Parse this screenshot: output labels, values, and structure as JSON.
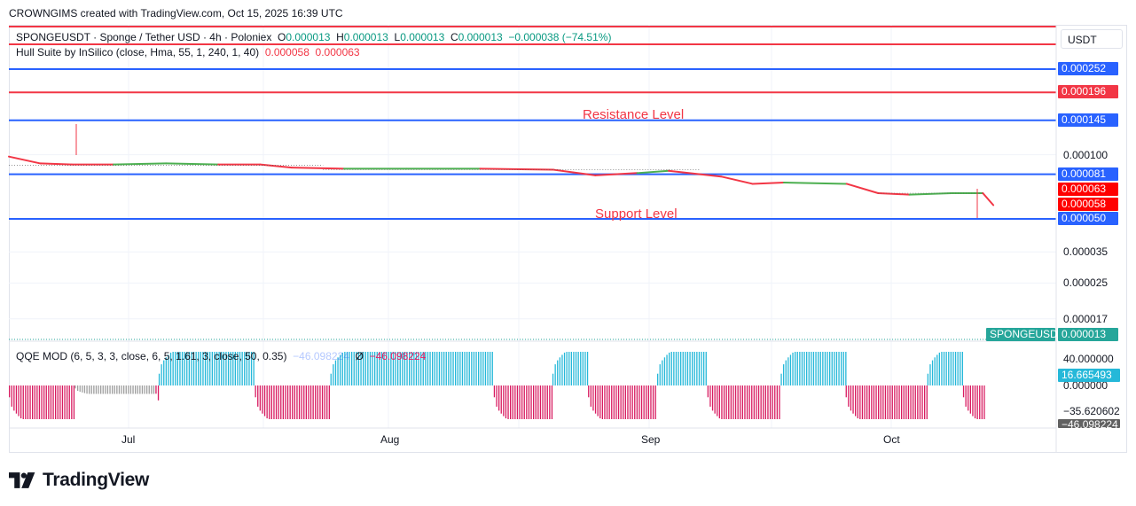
{
  "header": {
    "text": "CROWNGIMS created with TradingView.com, Oct 15, 2025 16:39 UTC"
  },
  "legend": {
    "symbol": "SPONGEUSDT · Sponge / Tether USD · 4h · Poloniex",
    "o_key": "O",
    "o_val": "0.000013",
    "h_key": "H",
    "h_val": "0.000013",
    "l_key": "L",
    "l_val": "0.000013",
    "c_key": "C",
    "c_val": "0.000013",
    "change": "−0.000038 (−74.51%)",
    "hull_label": "Hull Suite by InSilico (close, Hma, 55, 1, 240, 1, 40)",
    "hull_val1": "0.000058",
    "hull_val2": "0.000063",
    "qqe_label": "QQE MOD (6, 5, 3, 3, close, 6, 5, 1.61, 3, close, 50, 0.35)",
    "qqe_val1": "−46.098224",
    "qqe_icon": "Ø",
    "qqe_val2": "−46.098224"
  },
  "currency": "USDT",
  "annotations": {
    "resistance": "Resistance Level",
    "support": "Support Level"
  },
  "brand": "TradingView",
  "colors": {
    "blue_level": "#2962ff",
    "red_level": "#f23645",
    "hull_up": "#4caf50",
    "hull_down": "#f23645",
    "qqe_pos": "#25b8d9",
    "qqe_neg": "#d81b60",
    "qqe_neutral": "#9e9e9e",
    "teal": "#26a69a"
  },
  "chart_data": [
    {
      "type": "line",
      "title": "SPONGEUSDT · Sponge / Tether USD · 4h · Poloniex",
      "x_ticks": [
        "Jul",
        "Aug",
        "Sep",
        "Oct"
      ],
      "y_tick_labels": [
        "0.000100",
        "0.000035",
        "0.000025",
        "0.000017"
      ],
      "scale": "log",
      "horizontal_levels": [
        {
          "value": 0.000252,
          "label": "0.000252",
          "color": "#2962ff"
        },
        {
          "value": 0.000196,
          "label": "0.000196",
          "color": "#f23645"
        },
        {
          "value": 0.000145,
          "label": "0.000145",
          "color": "#2962ff"
        },
        {
          "value": 8.1e-05,
          "label": "0.000081",
          "color": "#2962ff"
        },
        {
          "value": 5e-05,
          "label": "0.000050",
          "color": "#2962ff"
        }
      ],
      "price_badges": [
        {
          "label": "0.000063",
          "color": "#ff0000"
        },
        {
          "label": "0.000058",
          "color": "#ff0000"
        },
        {
          "symbol": "SPONGEUSDT",
          "label": "0.000013",
          "color": "#26a69a"
        }
      ],
      "series": [
        {
          "name": "Hull Suite by InSilico",
          "t": [
            0,
            0.03,
            0.06,
            0.1,
            0.15,
            0.2,
            0.24,
            0.27,
            0.32,
            0.38,
            0.45,
            0.52,
            0.56,
            0.6,
            0.63,
            0.68,
            0.71,
            0.74,
            0.8,
            0.83,
            0.86,
            0.9,
            0.93,
            0.94
          ],
          "values": [
            9.8e-05,
            9.1e-05,
            9e-05,
            9e-05,
            9.1e-05,
            9e-05,
            9e-05,
            8.7e-05,
            8.6e-05,
            8.6e-05,
            8.6e-05,
            8.5e-05,
            8e-05,
            8.2e-05,
            8.4e-05,
            7.9e-05,
            7.3e-05,
            7.4e-05,
            7.3e-05,
            6.6e-05,
            6.5e-05,
            6.6e-05,
            6.6e-05,
            5.8e-05
          ],
          "direction": [
            "down",
            "down",
            "down",
            "up",
            "up",
            "down",
            "down",
            "down",
            "up",
            "up",
            "down",
            "down",
            "down",
            "up",
            "down",
            "down",
            "down",
            "up",
            "down",
            "down",
            "up",
            "up",
            "down",
            "down"
          ]
        }
      ]
    },
    {
      "type": "bar",
      "title": "QQE MOD (6, 5, 3, 3, close, 6, 5, 1.61, 3, close, 50, 0.35)",
      "y_tick_labels": [
        "40.000000",
        "0.000000",
        "−35.620602"
      ],
      "price_badges": [
        {
          "label": "16.665493",
          "color": "#25b8d9"
        },
        {
          "label": "−46.098224",
          "color": "#616161"
        }
      ],
      "segments": [
        {
          "t0": 0.0,
          "t1": 0.063,
          "value": -40,
          "color": "neg"
        },
        {
          "t0": 0.063,
          "t1": 0.14,
          "value": -10,
          "color": "neutral"
        },
        {
          "t0": 0.14,
          "t1": 0.143,
          "value": -28,
          "color": "neg"
        },
        {
          "t0": 0.143,
          "t1": 0.235,
          "value": 40,
          "color": "pos"
        },
        {
          "t0": 0.235,
          "t1": 0.307,
          "value": -40,
          "color": "neg"
        },
        {
          "t0": 0.307,
          "t1": 0.463,
          "value": 40,
          "color": "pos"
        },
        {
          "t0": 0.463,
          "t1": 0.519,
          "value": -40,
          "color": "neg"
        },
        {
          "t0": 0.519,
          "t1": 0.553,
          "value": 40,
          "color": "pos"
        },
        {
          "t0": 0.553,
          "t1": 0.619,
          "value": -40,
          "color": "neg"
        },
        {
          "t0": 0.619,
          "t1": 0.667,
          "value": 40,
          "color": "pos"
        },
        {
          "t0": 0.667,
          "t1": 0.737,
          "value": -40,
          "color": "neg"
        },
        {
          "t0": 0.737,
          "t1": 0.799,
          "value": 40,
          "color": "pos"
        },
        {
          "t0": 0.799,
          "t1": 0.877,
          "value": -40,
          "color": "neg"
        },
        {
          "t0": 0.877,
          "t1": 0.911,
          "value": 40,
          "color": "pos"
        },
        {
          "t0": 0.911,
          "t1": 0.932,
          "value": -40,
          "color": "neg"
        }
      ]
    }
  ]
}
